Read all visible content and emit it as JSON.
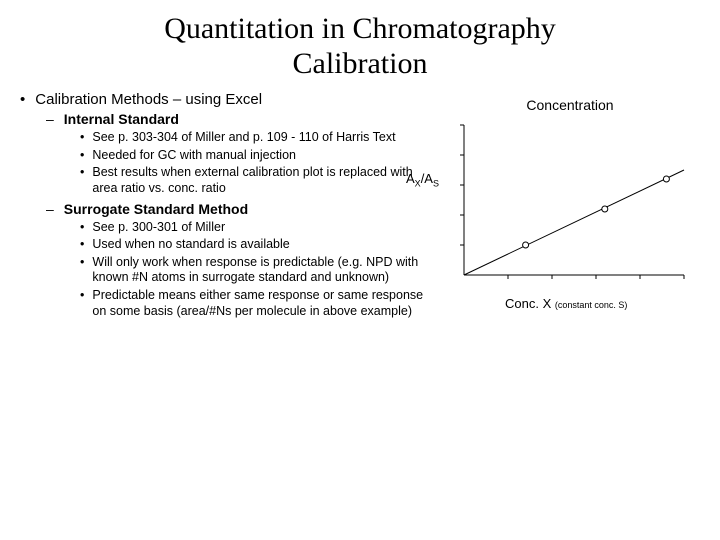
{
  "title_line1": "Quantitation in Chromatography",
  "title_line2": "Calibration",
  "l1": "Calibration Methods – using Excel",
  "section1": {
    "heading": "Internal Standard",
    "items": [
      "See p. 303-304 of Miller and p. 109 - 110 of Harris Text",
      "Needed for GC with manual injection",
      "Best results when external calibration plot is replaced with area ratio vs. conc. ratio"
    ]
  },
  "section2": {
    "heading": "Surrogate Standard Method",
    "items": [
      "See p. 300-301 of Miller",
      "Used when no standard is available",
      "Will only work when response is predictable (e.g. NPD with known #N atoms in surrogate standard and unknown)",
      "Predictable means either same response or same response on some basis (area/#Ns per molecule in above example)"
    ]
  },
  "chart": {
    "title": "Concentration",
    "ylabel_a": "A",
    "ylabel_x": "X",
    "ylabel_slash": "/A",
    "ylabel_s": "S",
    "xlabel_main": "Conc. X ",
    "xlabel_sub": "(constant conc. S)",
    "axis_color": "#000000",
    "tick_count": 5,
    "line_color": "#000000",
    "marker_outline": "#000000",
    "marker_fill": "#ffffff",
    "marker_radius": 3,
    "background": "#ffffff",
    "x_range": [
      0,
      10
    ],
    "y_range": [
      0,
      10
    ],
    "points": [
      {
        "x": 2.8,
        "y": 2.0
      },
      {
        "x": 6.4,
        "y": 4.4
      },
      {
        "x": 9.2,
        "y": 6.4
      }
    ],
    "fit_line": {
      "x1": 0,
      "y1": 0,
      "x2": 10,
      "y2": 7.0
    }
  }
}
